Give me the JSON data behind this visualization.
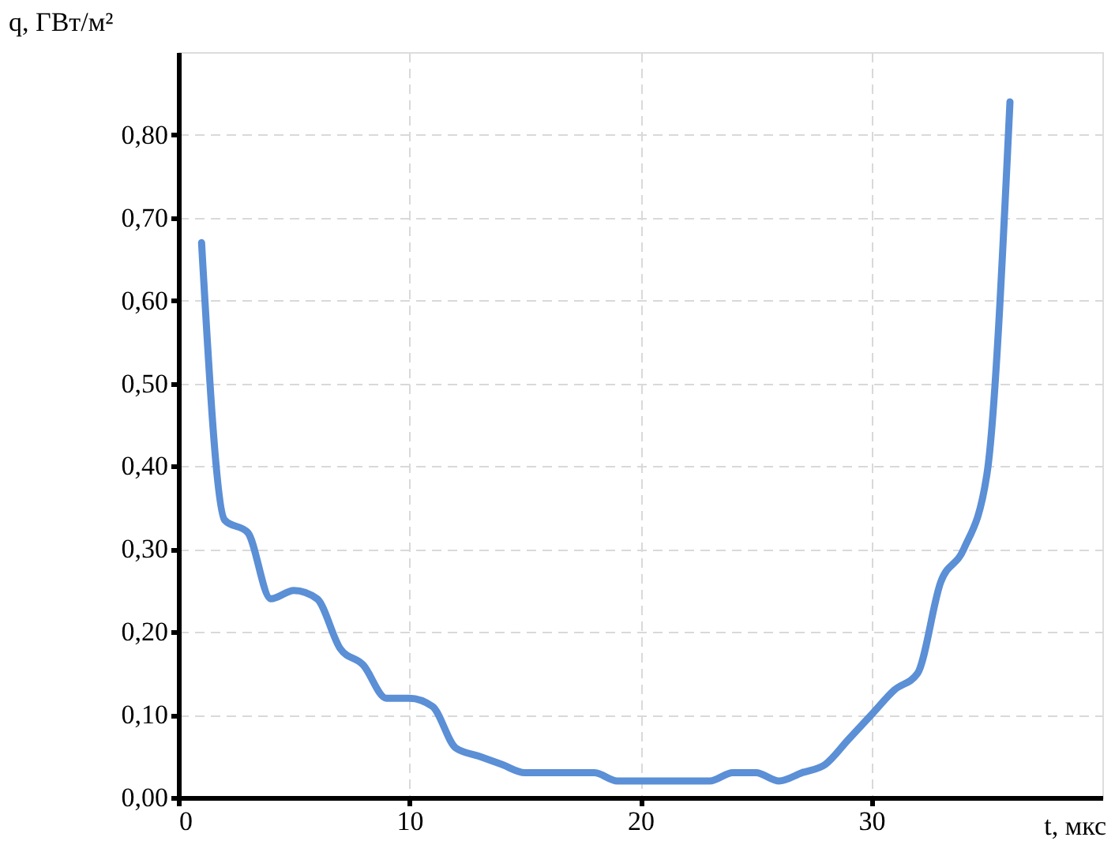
{
  "chart_data": {
    "type": "line",
    "xlabel": "t, мкс",
    "ylabel": "q, ГВт/м²",
    "x": [
      1,
      2,
      3,
      4,
      5,
      6,
      7,
      8,
      9,
      10,
      11,
      12,
      13,
      14,
      15,
      16,
      17,
      18,
      19,
      20,
      21,
      22,
      23,
      24,
      25,
      26,
      27,
      28,
      29,
      30,
      31,
      32,
      33,
      34,
      35,
      36
    ],
    "series": [
      {
        "color": "#5b8fd6",
        "values": [
          0.67,
          0.335,
          0.32,
          0.24,
          0.25,
          0.24,
          0.18,
          0.16,
          0.12,
          0.12,
          0.11,
          0.06,
          0.05,
          0.04,
          0.03,
          0.03,
          0.03,
          0.03,
          0.02,
          0.02,
          0.02,
          0.02,
          0.02,
          0.03,
          0.03,
          0.02,
          0.03,
          0.04,
          0.07,
          0.1,
          0.13,
          0.15,
          0.26,
          0.3,
          0.39,
          0.84
        ]
      }
    ],
    "xlim": [
      0,
      40
    ],
    "xticks": [
      0,
      10,
      20,
      30
    ],
    "ylim": [
      0,
      0.9
    ],
    "yticks": [
      {
        "value": 0,
        "label": "0,00"
      },
      {
        "value": 0.1,
        "label": "0,10"
      },
      {
        "value": 0.2,
        "label": "0,20"
      },
      {
        "value": 0.3,
        "label": "0,30"
      },
      {
        "value": 0.4,
        "label": "0,40"
      },
      {
        "value": 0.5,
        "label": "0,50"
      },
      {
        "value": 0.6,
        "label": "0,60"
      },
      {
        "value": 0.7,
        "label": "0,70"
      },
      {
        "value": 0.8,
        "label": "0,80"
      }
    ],
    "grid": true,
    "legend": false,
    "marker": "none",
    "line_style": "solid"
  }
}
